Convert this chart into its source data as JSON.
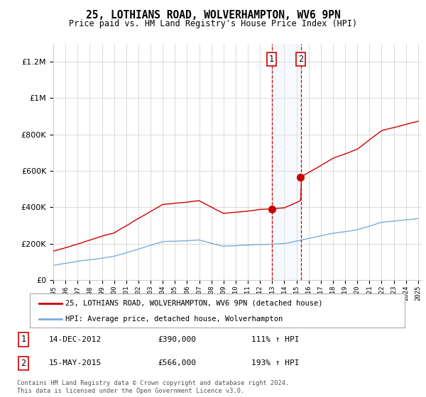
{
  "title": "25, LOTHIANS ROAD, WOLVERHAMPTON, WV6 9PN",
  "subtitle": "Price paid vs. HM Land Registry's House Price Index (HPI)",
  "legend_line1": "25, LOTHIANS ROAD, WOLVERHAMPTON, WV6 9PN (detached house)",
  "legend_line2": "HPI: Average price, detached house, Wolverhampton",
  "annotation1_date": "14-DEC-2012",
  "annotation1_price": 390000,
  "annotation1_hpi": "111% ↑ HPI",
  "annotation2_date": "15-MAY-2015",
  "annotation2_price": 566000,
  "annotation2_hpi": "193% ↑ HPI",
  "footer": "Contains HM Land Registry data © Crown copyright and database right 2024.\nThis data is licensed under the Open Government Licence v3.0.",
  "ylim": [
    0,
    1300000
  ],
  "hpi_color": "#7aaddc",
  "price_color": "#cc0000",
  "annotation_color": "#cc0000",
  "shade_color": "#ddeeff",
  "grid_color": "#cccccc",
  "background_color": "#ffffff",
  "sale1_year": 2012.96,
  "sale2_year": 2015.37,
  "sale1_price": 390000,
  "sale2_price": 566000
}
